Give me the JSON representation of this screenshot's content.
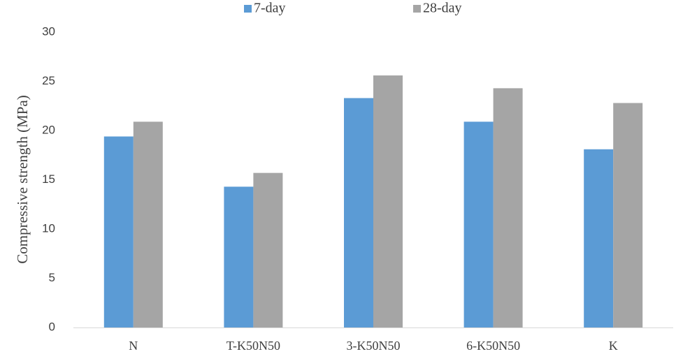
{
  "chart_data": {
    "type": "bar",
    "categories": [
      "N",
      "T-K50N50",
      "3-K50N50",
      "6-K50N50",
      "K"
    ],
    "series": [
      {
        "name": "7-day",
        "values": [
          19.4,
          14.3,
          23.3,
          20.9,
          18.1
        ],
        "color": "#5b9bd5"
      },
      {
        "name": "28-day",
        "values": [
          20.9,
          15.7,
          25.6,
          24.3,
          22.8
        ],
        "color": "#a5a5a5"
      }
    ],
    "xlabel": "",
    "ylabel": "Compressive strength (MPa)",
    "ylim": [
      0,
      30
    ],
    "yticks": [
      "0",
      "5",
      "10",
      "15",
      "20",
      "25",
      "30"
    ],
    "grid": false,
    "legend_position": "top"
  }
}
